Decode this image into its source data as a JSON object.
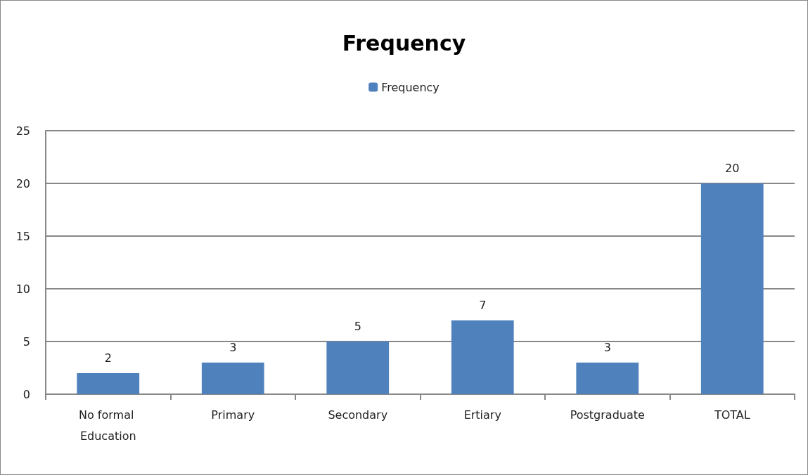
{
  "chart_data": {
    "type": "bar",
    "title": "Frequency",
    "categories": [
      "No formal Education",
      "Primary",
      "Secondary",
      "Ertiary",
      "Postgraduate",
      "TOTAL"
    ],
    "series": [
      {
        "name": "Frequency",
        "color": "#4f81bd",
        "values": [
          2,
          3,
          5,
          7,
          3,
          20
        ]
      }
    ],
    "ylim": [
      0,
      25
    ],
    "yticks": [
      0,
      5,
      10,
      15,
      20,
      25
    ],
    "grid": "y",
    "legend": "top",
    "data_labels": true
  }
}
